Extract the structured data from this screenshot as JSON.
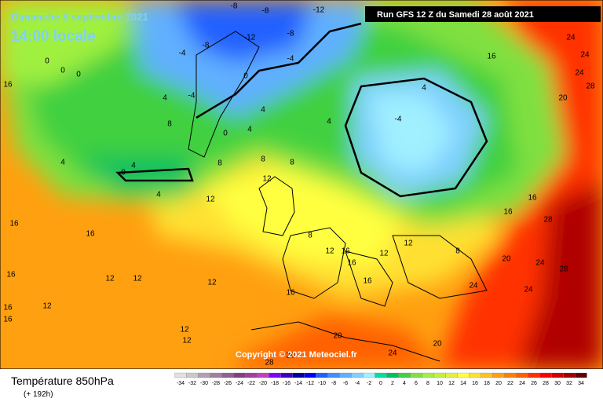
{
  "map": {
    "title": "Dimanche 5 septembre 2021",
    "subtitle": "14:00 locale",
    "run": "Run GFS 12 Z du Samedi 28 août 2021",
    "copyright": "Copyright © 2021 Meteociel.fr",
    "variable": "Température 850hPa",
    "lead": "(+ 192h)",
    "contour_labels": [
      -8,
      -8,
      -12,
      -8,
      -12,
      -8,
      -4,
      -4,
      0,
      0,
      0,
      0,
      -4,
      -4,
      4,
      4,
      4,
      4,
      4,
      8,
      0,
      8,
      8,
      8,
      4,
      4,
      0,
      4,
      12,
      12,
      16,
      16,
      24,
      24,
      24,
      28,
      20,
      16,
      16,
      28,
      16,
      16,
      16,
      12,
      12,
      12,
      12,
      12,
      16,
      16,
      16,
      12,
      12,
      8,
      20,
      24,
      28,
      24,
      24,
      16,
      16,
      12,
      20,
      20,
      24,
      28,
      20,
      8,
      12,
      16
    ],
    "colorbar": {
      "ticks": [
        -34,
        -32,
        -30,
        -28,
        -26,
        -24,
        -22,
        -20,
        -18,
        -16,
        -14,
        -12,
        -10,
        -8,
        -6,
        -4,
        -2,
        0,
        2,
        4,
        6,
        8,
        10,
        12,
        14,
        16,
        18,
        20,
        22,
        24,
        26,
        28,
        30,
        32,
        34
      ],
      "colors": [
        "#e0e0e0",
        "#c8c8c8",
        "#b0a0b0",
        "#a080a0",
        "#906090",
        "#804080",
        "#a040a0",
        "#c040c0",
        "#8000ff",
        "#4000c0",
        "#0000a0",
        "#0000ff",
        "#2060ff",
        "#4090ff",
        "#60b0ff",
        "#80d0ff",
        "#a0f0ff",
        "#00e0a0",
        "#00c060",
        "#40d040",
        "#80e040",
        "#a0f040",
        "#c0f040",
        "#e0f040",
        "#ffff40",
        "#ffe030",
        "#ffc020",
        "#ffa010",
        "#ff8000",
        "#ff6000",
        "#ff3000",
        "#ff0000",
        "#d00000",
        "#a00000",
        "#600000"
      ]
    }
  }
}
